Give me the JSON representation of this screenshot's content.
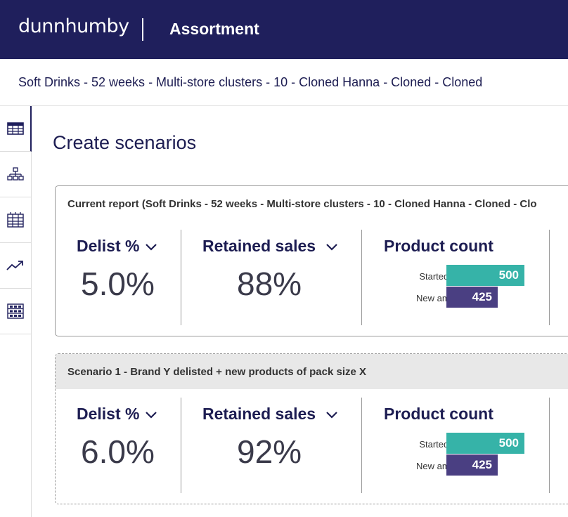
{
  "header": {
    "logo": "dunnhumby",
    "app_title": "Assortment"
  },
  "breadcrumb": "Soft Drinks - 52 weeks - Multi-store clusters - 10 - Cloned Hanna - Cloned - Cloned",
  "sidebar": {
    "items": [
      {
        "icon": "table-icon",
        "active": true
      },
      {
        "icon": "hierarchy-icon",
        "active": false
      },
      {
        "icon": "grid-calendar-icon",
        "active": false
      },
      {
        "icon": "trend-icon",
        "active": false
      },
      {
        "icon": "shelf-icon",
        "active": false
      }
    ]
  },
  "page_title": "Create scenarios",
  "current": {
    "header": "Current report  (Soft Drinks - 52 weeks - Multi-store clusters - 10 - Cloned Hanna - Cloned - Clo",
    "delist_label": "Delist %",
    "delist_value": "5.0%",
    "retained_label": "Retained sales",
    "retained_value": "88%",
    "product_count_label": "Product count",
    "started_label": "Started with",
    "started_value": "500",
    "new_label": "New amount",
    "new_value": "425"
  },
  "scenario1": {
    "header": "Scenario 1 - Brand Y delisted + new products of pack size X",
    "delist_label": "Delist %",
    "delist_value": "6.0%",
    "retained_label": "Retained sales",
    "retained_value": "92%",
    "product_count_label": "Product count",
    "started_label": "Started with",
    "started_value": "500",
    "new_label": "New amount",
    "new_value": "425"
  },
  "colors": {
    "navy": "#1f1f5c",
    "teal": "#36b3a8",
    "purple": "#4a3f82"
  }
}
